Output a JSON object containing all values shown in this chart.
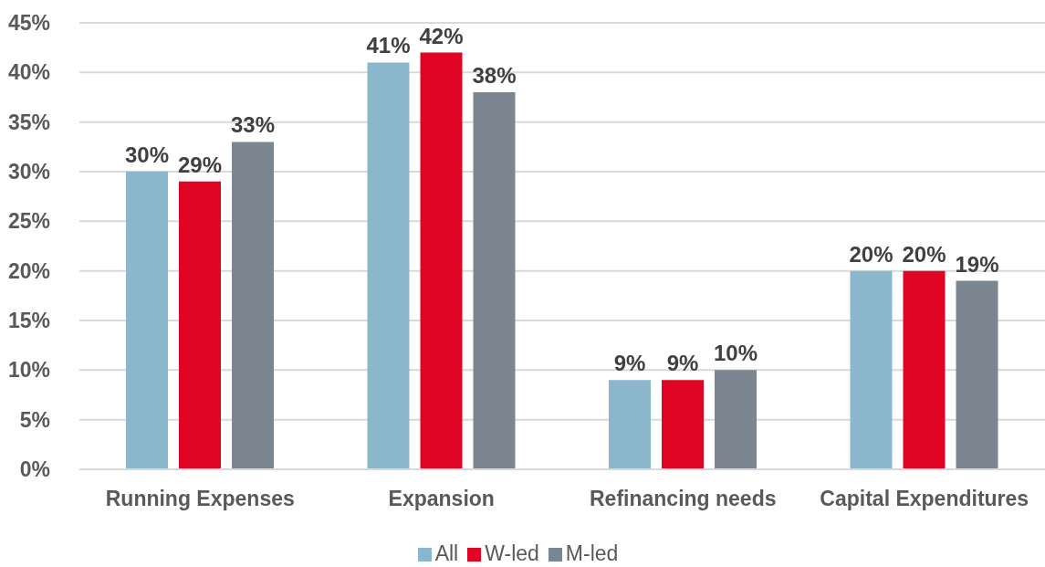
{
  "chart_data": {
    "type": "bar",
    "categories": [
      "Running Expenses",
      "Expansion",
      "Refinancing needs",
      "Capital Expenditures"
    ],
    "series": [
      {
        "name": "All",
        "color": "#8ab7cc",
        "values": [
          30,
          41,
          9,
          20
        ],
        "value_labels": [
          "30%",
          "41%",
          "9%",
          "20%"
        ]
      },
      {
        "name": "W-led",
        "color": "#e00524",
        "values": [
          29,
          42,
          9,
          20
        ],
        "value_labels": [
          "29%",
          "42%",
          "9%",
          "20%"
        ]
      },
      {
        "name": "M-led",
        "color": "#7c8690",
        "values": [
          33,
          38,
          10,
          19
        ],
        "value_labels": [
          "33%",
          "38%",
          "10%",
          "19%"
        ]
      }
    ],
    "ylim": [
      0,
      45
    ],
    "yticks": [
      {
        "value": 0,
        "label": "0%"
      },
      {
        "value": 5,
        "label": "5%"
      },
      {
        "value": 10,
        "label": "10%"
      },
      {
        "value": 15,
        "label": "15%"
      },
      {
        "value": 20,
        "label": "20%"
      },
      {
        "value": 25,
        "label": "25%"
      },
      {
        "value": 30,
        "label": "30%"
      },
      {
        "value": 35,
        "label": "35%"
      },
      {
        "value": 40,
        "label": "40%"
      },
      {
        "value": 45,
        "label": "45%"
      }
    ],
    "grid": "y",
    "legend": "bottom"
  }
}
